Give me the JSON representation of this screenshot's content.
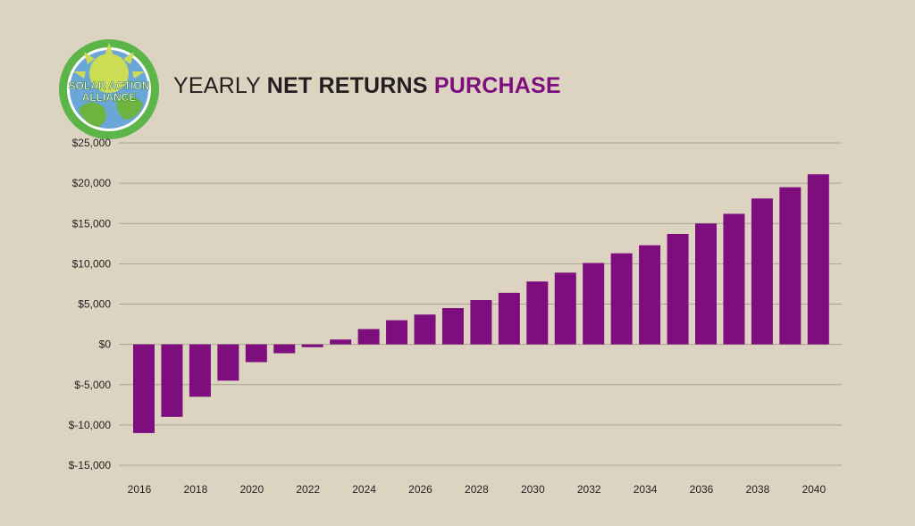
{
  "header": {
    "title_part1": "YEARLY ",
    "title_part2": "NET RETURNS",
    "title_part3": " PURCHASE",
    "logo_text_line1": "SOLAR ACTION",
    "logo_text_line2": "ALLIANCE"
  },
  "colors": {
    "background": "#dcd4c1",
    "bar": "#7e0d7e",
    "accent": "#7e0d7e",
    "logo_ring": "#5cb548",
    "logo_sky": "#6aa6d8",
    "logo_sun": "#cbdc55"
  },
  "chart_data": {
    "type": "bar",
    "title": "YEARLY NET RETURNS PURCHASE",
    "xlabel": "",
    "ylabel": "",
    "ylim": [
      -15000,
      25000
    ],
    "yticks": [
      25000,
      20000,
      15000,
      10000,
      5000,
      0,
      -5000,
      -10000,
      -15000
    ],
    "ytick_labels": [
      "$25,000",
      "$20,000",
      "$15,000",
      "$10,000",
      "$5,000",
      "$0",
      "$-5,000",
      "$-10,000",
      "$-15,000"
    ],
    "xtick_labels": [
      "2016",
      "2018",
      "2020",
      "2022",
      "2024",
      "2026",
      "2028",
      "2030",
      "2032",
      "2034",
      "2036",
      "2038",
      "2040"
    ],
    "grid": true,
    "legend": "none",
    "categories": [
      "2016",
      "2017",
      "2018",
      "2019",
      "2020",
      "2021",
      "2022",
      "2023",
      "2024",
      "2025",
      "2026",
      "2027",
      "2028",
      "2029",
      "2030",
      "2031",
      "2032",
      "2033",
      "2034",
      "2035",
      "2036",
      "2037",
      "2038",
      "2039",
      "2040"
    ],
    "values": [
      -11000,
      -9000,
      -6500,
      -4500,
      -2200,
      -1100,
      -350,
      600,
      1900,
      3000,
      3700,
      4500,
      5500,
      6400,
      7800,
      8900,
      10100,
      11300,
      12300,
      13700,
      15000,
      16200,
      18100,
      19500,
      21100
    ]
  }
}
